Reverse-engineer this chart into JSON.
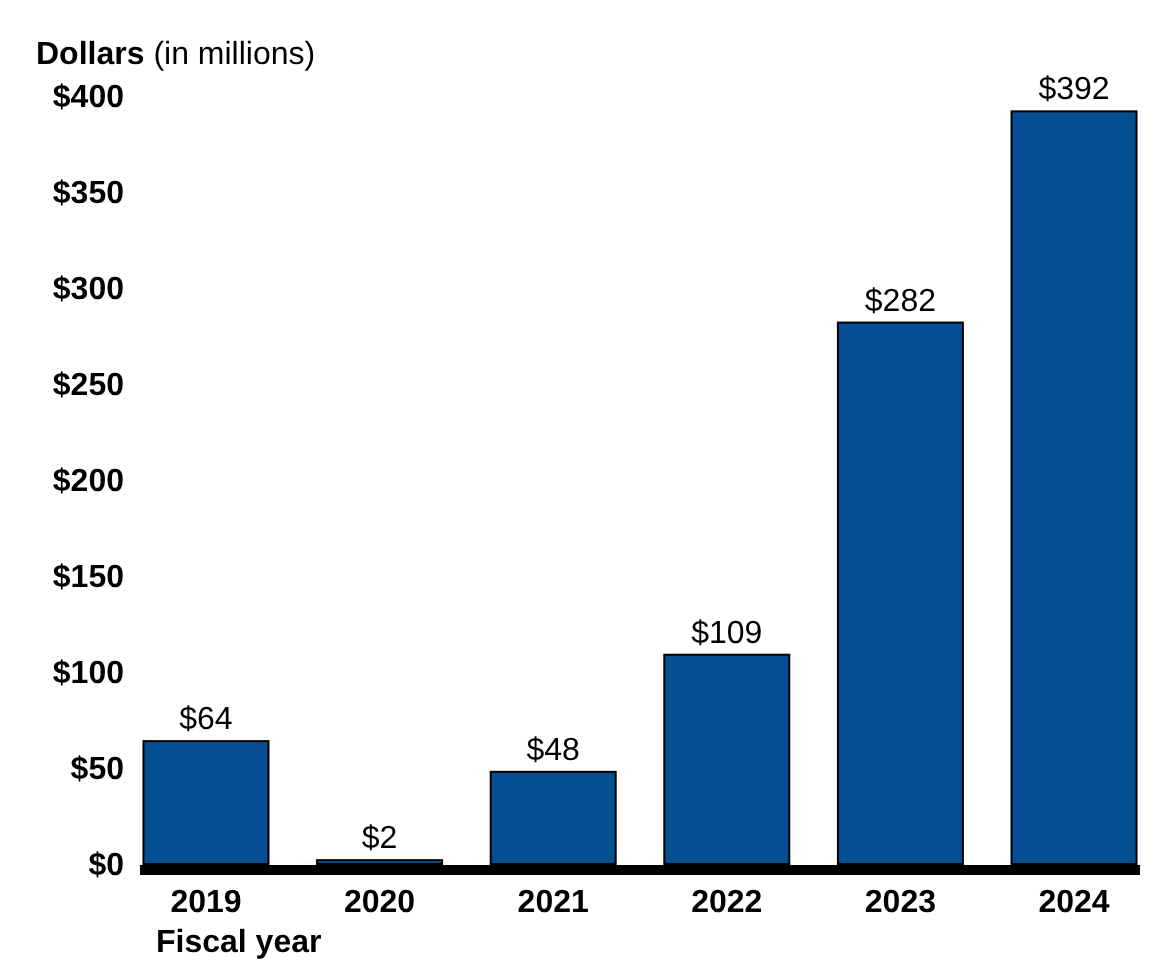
{
  "chart_data": {
    "type": "bar",
    "title": "Dollars (in millions)",
    "xlabel": "Fiscal year",
    "categories": [
      "2019",
      "2020",
      "2021",
      "2022",
      "2023",
      "2024"
    ],
    "values": [
      64,
      2,
      48,
      109,
      282,
      392
    ],
    "value_labels": [
      "$64",
      "$2",
      "$48",
      "$109",
      "$282",
      "$392"
    ],
    "color": "#064e92",
    "ylim": [
      0,
      400
    ],
    "yticks": [
      {
        "value": 0,
        "label": "$0"
      },
      {
        "value": 50,
        "label": "$50"
      },
      {
        "value": 100,
        "label": "$100"
      },
      {
        "value": 150,
        "label": "$150"
      },
      {
        "value": 200,
        "label": "$200"
      },
      {
        "value": 250,
        "label": "$250"
      },
      {
        "value": 300,
        "label": "$300"
      },
      {
        "value": 350,
        "label": "$350"
      },
      {
        "value": 400,
        "label": "$400"
      }
    ],
    "grid": false
  }
}
